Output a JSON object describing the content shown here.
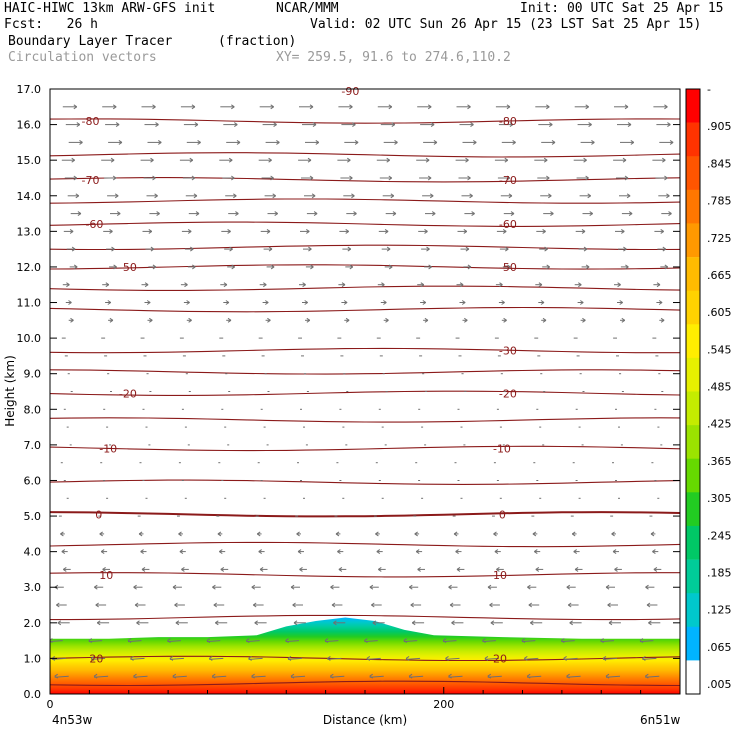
{
  "header": {
    "model": "HAIC-HIWC 13km ARW-GFS init",
    "org": "NCAR/MMM",
    "init": "Init: 00 UTC Sat 25 Apr 15",
    "fcst": "Fcst:   26 h",
    "valid": "Valid: 02 UTC Sun 26 Apr 15 (23 LST Sat 25 Apr 15)",
    "field": "Boundary Layer Tracer",
    "units": "(fraction)",
    "vectors": "Circulation vectors",
    "xy": "XY= 259.5, 91.6 to 274.6,110.2"
  },
  "colors": {
    "contour": "#8b1a1a",
    "vector": "#707070",
    "colorbar": [
      "#ff0000",
      "#ff3300",
      "#ff5500",
      "#ff7700",
      "#ff9900",
      "#ffbb00",
      "#ffd200",
      "#ffee00",
      "#e6f000",
      "#c4ec00",
      "#9be300",
      "#66d900",
      "#22cc22",
      "#00c866",
      "#00cc99",
      "#00c8cc",
      "#00b4ff",
      "#ffffff"
    ]
  },
  "chart_data": {
    "type": "heatmap",
    "title": "Boundary Layer Tracer",
    "xlabel": "Distance (km)",
    "ylabel": "Height (km)",
    "xlim": [
      0,
      320
    ],
    "ylim": [
      0,
      17
    ],
    "x_ticks": [
      0,
      200
    ],
    "x_tick_labels": [
      "0",
      "200"
    ],
    "x_endpoints": [
      "4n53w",
      "6n51w"
    ],
    "y_ticks": [
      0,
      1,
      2,
      3,
      4,
      5,
      6,
      7,
      8,
      9,
      10,
      11,
      12,
      13,
      14,
      15,
      16,
      17
    ],
    "y_tick_labels": [
      "0.0",
      "1.0",
      "2.0",
      "3.0",
      "4.0",
      "5.0",
      "6.0",
      "7.0",
      "8.0",
      "9.0",
      "10.0",
      "11.0",
      "12.0",
      "13.0",
      "14.0",
      "15.0",
      "16.0",
      "17.0"
    ],
    "colorbar_labels": [
      "-",
      ".905",
      ".845",
      ".785",
      ".725",
      ".665",
      ".605",
      ".545",
      ".485",
      ".425",
      ".365",
      ".305",
      ".245",
      ".185",
      ".125",
      ".065",
      ".005"
    ],
    "tracer_top_km": [
      {
        "x": 0,
        "z": 1.55
      },
      {
        "x": 30,
        "z": 1.55
      },
      {
        "x": 55,
        "z": 1.6
      },
      {
        "x": 80,
        "z": 1.6
      },
      {
        "x": 105,
        "z": 1.65
      },
      {
        "x": 120,
        "z": 1.9
      },
      {
        "x": 135,
        "z": 2.05
      },
      {
        "x": 150,
        "z": 2.15
      },
      {
        "x": 165,
        "z": 2.05
      },
      {
        "x": 180,
        "z": 1.8
      },
      {
        "x": 195,
        "z": 1.65
      },
      {
        "x": 230,
        "z": 1.6
      },
      {
        "x": 270,
        "z": 1.55
      },
      {
        "x": 320,
        "z": 1.55
      }
    ],
    "temperature_contours_c": [
      {
        "label": "20",
        "z": 1.0,
        "lx1": 20,
        "lx2": 225
      },
      {
        "label": "10",
        "z": 3.35,
        "lx1": 25,
        "lx2": 225
      },
      {
        "label": "0",
        "z": 5.05,
        "lx1": 23,
        "lx2": 228
      },
      {
        "label": "-10",
        "z": 6.9,
        "lx1": 25,
        "lx2": 225
      },
      {
        "label": "-20",
        "z": 8.45,
        "lx1": 35,
        "lx2": 228
      },
      {
        "label": "-30",
        "z": 9.65,
        "lx1": null,
        "lx2": 228
      },
      {
        "label": "-50",
        "z": 12.0,
        "lx1": 35,
        "lx2": 228
      },
      {
        "label": "-60",
        "z": 13.2,
        "lx1": 18,
        "lx2": 228
      },
      {
        "label": "-70",
        "z": 14.45,
        "lx1": 16,
        "lx2": 228
      },
      {
        "label": "-80",
        "z": 16.1,
        "lx1": 16,
        "lx2": 228
      }
    ],
    "extra_contour_levels_km": [
      0.3,
      2.15,
      4.2,
      5.95,
      7.7,
      9.05,
      10.8,
      11.4,
      12.55,
      13.85,
      15.15
    ],
    "top_partial_label": "-90"
  }
}
